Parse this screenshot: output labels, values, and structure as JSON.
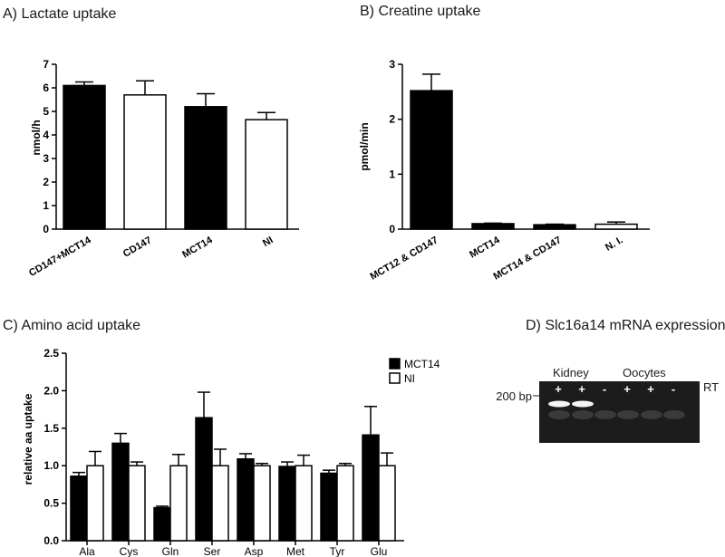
{
  "chart_data": [
    {
      "id": "A",
      "type": "bar",
      "title": "A) Lactate uptake",
      "ylabel": "nmol/h",
      "ylim": [
        0,
        7
      ],
      "yticks": [
        0,
        1,
        2,
        3,
        4,
        5,
        6,
        7
      ],
      "categories": [
        "CD147+MCT14",
        "CD147",
        "MCT14",
        "NI"
      ],
      "values": [
        6.1,
        5.7,
        5.2,
        4.65
      ],
      "errors": [
        0.15,
        0.6,
        0.55,
        0.3
      ],
      "fills": [
        "#000000",
        "#ffffff",
        "#000000",
        "#ffffff"
      ]
    },
    {
      "id": "B",
      "type": "bar",
      "title": "B) Creatine uptake",
      "ylabel": "pmol/min",
      "ylim": [
        0,
        3
      ],
      "yticks": [
        0,
        1,
        2,
        3
      ],
      "categories": [
        "MCT12 & CD147",
        "MCT14",
        "MCT14 & CD147",
        "N. I."
      ],
      "values": [
        2.52,
        0.1,
        0.08,
        0.09
      ],
      "errors": [
        0.3,
        0.01,
        0.01,
        0.04
      ],
      "fills": [
        "#000000",
        "#000000",
        "#000000",
        "#ffffff"
      ]
    },
    {
      "id": "C",
      "type": "bar",
      "title": "C) Amino acid uptake",
      "ylabel": "relative aa uptake",
      "ylim": [
        0,
        2.5
      ],
      "yticks": [
        "0.0",
        "0.5",
        "1.0",
        "1.5",
        "2.0",
        "2.5"
      ],
      "categories": [
        "Ala",
        "Cys",
        "Gln",
        "Ser",
        "Asp",
        "Met",
        "Tyr",
        "Glu"
      ],
      "series": [
        {
          "name": "MCT14",
          "color": "#000000",
          "values": [
            0.86,
            1.3,
            0.44,
            1.64,
            1.09,
            0.99,
            0.9,
            1.41
          ],
          "errors": [
            0.05,
            0.13,
            0.02,
            0.34,
            0.07,
            0.06,
            0.04,
            0.38
          ]
        },
        {
          "name": "NI",
          "color": "#ffffff",
          "values": [
            1.0,
            1.0,
            1.0,
            1.0,
            1.0,
            1.0,
            1.0,
            1.0
          ],
          "errors": [
            0.19,
            0.05,
            0.15,
            0.22,
            0.03,
            0.14,
            0.03,
            0.17
          ]
        }
      ],
      "legend": "top-right"
    }
  ],
  "gel": {
    "title": "D) Slc16a14 mRNA expression",
    "group_labels": [
      "Kidney",
      "Oocytes"
    ],
    "marker": "200 bp",
    "rt_label": "RT",
    "lanes": [
      "+",
      "+",
      "-",
      "+",
      "+",
      "-"
    ],
    "band_present": [
      true,
      true,
      false,
      false,
      false,
      false
    ]
  }
}
